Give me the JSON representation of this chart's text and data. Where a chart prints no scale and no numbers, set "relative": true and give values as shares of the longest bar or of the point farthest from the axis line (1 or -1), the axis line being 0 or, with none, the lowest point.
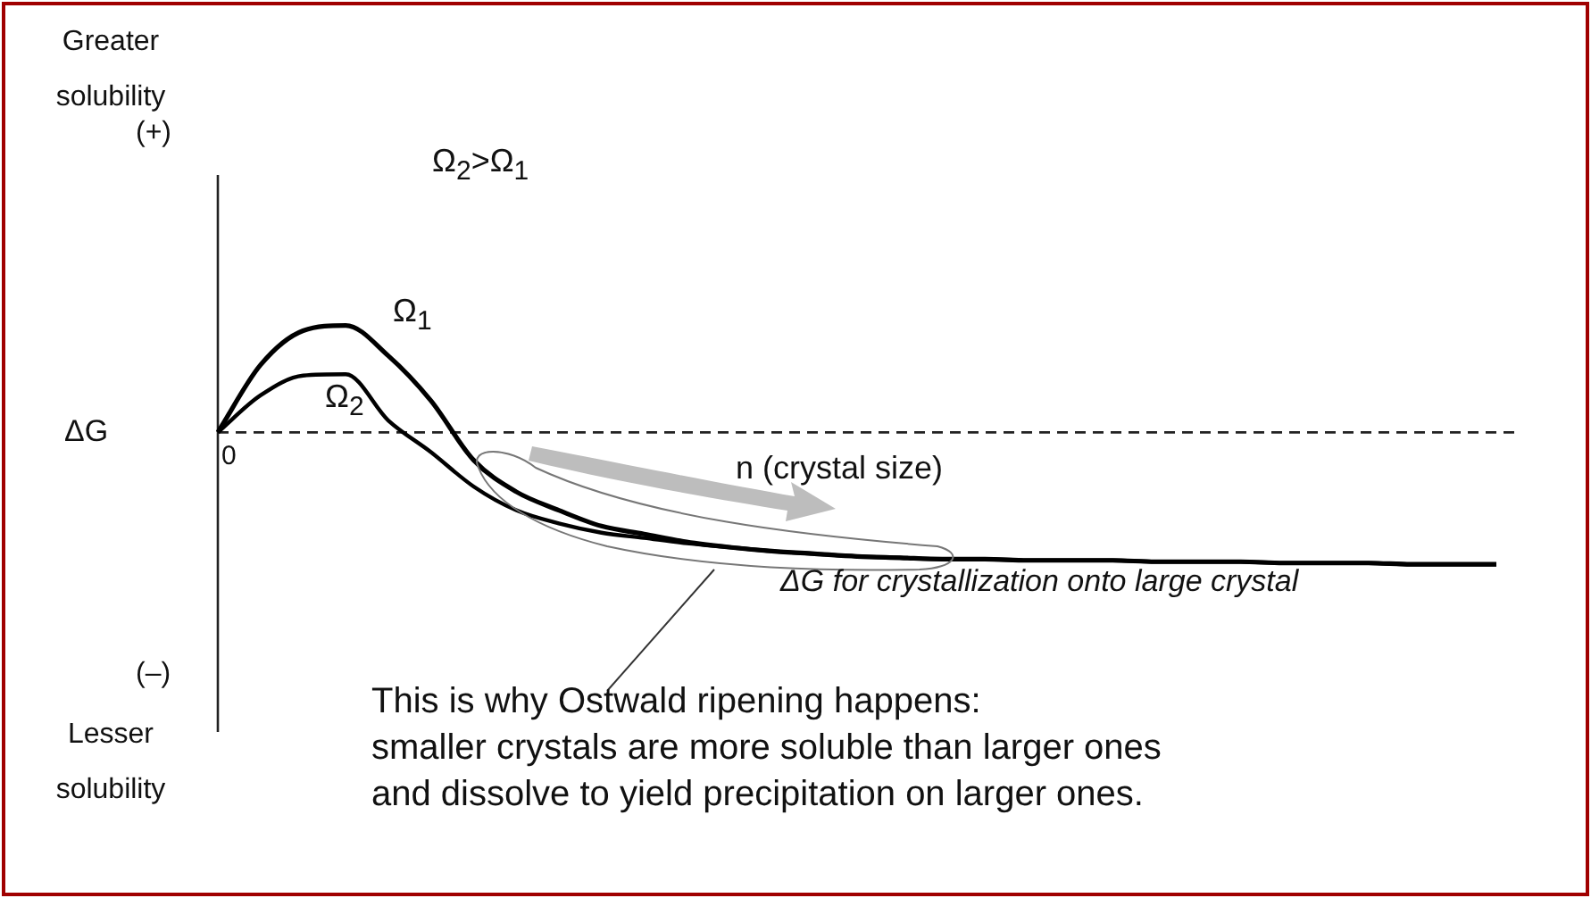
{
  "chart_data": {
    "type": "line",
    "relative": true,
    "xlabel": "n (crystal size)",
    "ylabel": "ΔG",
    "categories": [
      null,
      null,
      null,
      null,
      null,
      null,
      null,
      null,
      null,
      null,
      null,
      null,
      null,
      null,
      null,
      null,
      null,
      null,
      null,
      null,
      null,
      null,
      null,
      null,
      null,
      null,
      null,
      null,
      null,
      null,
      null
    ],
    "series": [
      {
        "name": "Ω$_{1}$",
        "color": "#000000",
        "values": [
          0,
          0.51,
          0.77,
          0.81,
          0.58,
          0.24,
          -0.21,
          -0.45,
          -0.59,
          -0.71,
          -0.77,
          -0.83,
          -0.87,
          -0.9,
          -0.92,
          -0.94,
          -0.95,
          -0.96,
          -0.96,
          -0.97,
          -0.97,
          -0.97,
          -0.98,
          -0.98,
          -0.98,
          -0.99,
          -0.99,
          -0.99,
          -1,
          -1,
          -1
        ]
      },
      {
        "name": "Ω$_{2}$",
        "color": "#000000",
        "values": [
          0,
          0.28,
          0.43,
          0.44,
          0.09,
          -0.15,
          -0.41,
          -0.59,
          -0.69,
          -0.76,
          -0.8,
          -0.84,
          -0.87,
          -0.9,
          -0.92,
          -0.94,
          -0.95,
          -0.96,
          -0.96,
          -0.97,
          -0.97,
          -0.97,
          -0.98,
          -0.98,
          -0.98,
          -0.99,
          -0.99,
          -0.99,
          -1,
          -1,
          -1
        ]
      }
    ],
    "ref_lines": [
      {
        "axis": "y",
        "value": 0,
        "line_style": "dashed",
        "color": "#222222"
      }
    ],
    "annotations": [
      "Greater solubility",
      "(+)",
      "0",
      "(–)",
      "Lesser solubility",
      "Ω$_{2}$>Ω$_{1}$",
      "ΔG for crystallization onto large crystal",
      "This is why Ostwald ripening happens:\nsmaller crystals are more soluble than larger ones\nand dissolve to yield precipitation on larger ones."
    ]
  }
}
